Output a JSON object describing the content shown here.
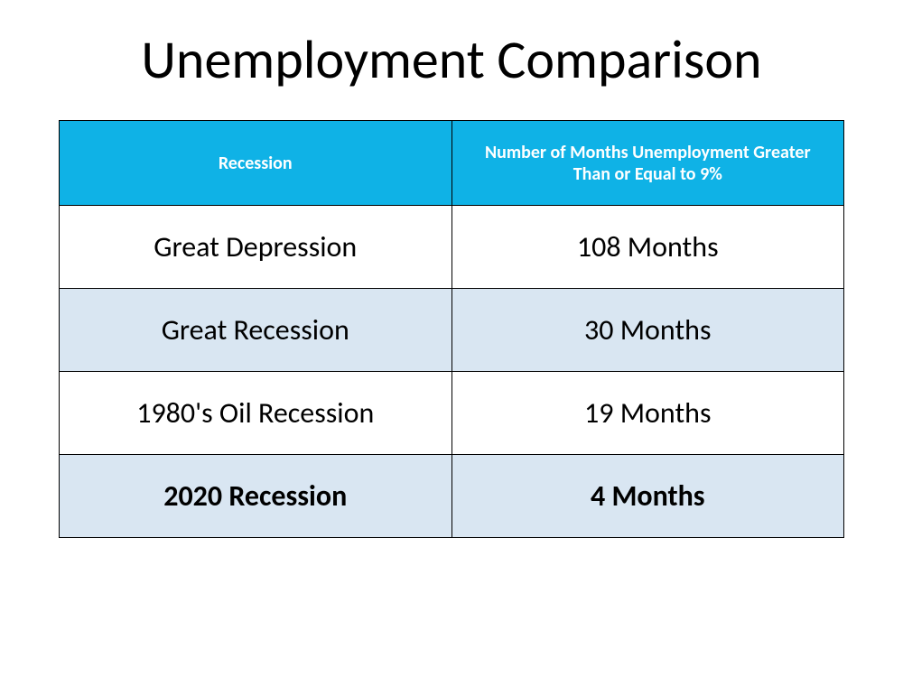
{
  "title": "Unemployment Comparison",
  "table": {
    "type": "table",
    "background_color": "#ffffff",
    "border_color": "#000000",
    "header": {
      "background_color": "#0fb2e6",
      "text_color": "#ffffff",
      "fontsize": 20,
      "font_weight": "700",
      "columns": [
        "Recession",
        "Number of Months Unemployment Greater Than or Equal to 9%"
      ]
    },
    "row_colors": {
      "even": "#ffffff",
      "odd": "#d9e6f2"
    },
    "body_fontsize": 32,
    "body_text_color": "#000000",
    "rows": [
      {
        "cells": [
          "Great Depression",
          "108 Months"
        ],
        "bold": false
      },
      {
        "cells": [
          "Great Recession",
          "30 Months"
        ],
        "bold": false
      },
      {
        "cells": [
          "1980's Oil Recession",
          "19 Months"
        ],
        "bold": false
      },
      {
        "cells": [
          "2020 Recession",
          "4 Months"
        ],
        "bold": true
      }
    ],
    "column_widths": [
      "50%",
      "50%"
    ]
  }
}
